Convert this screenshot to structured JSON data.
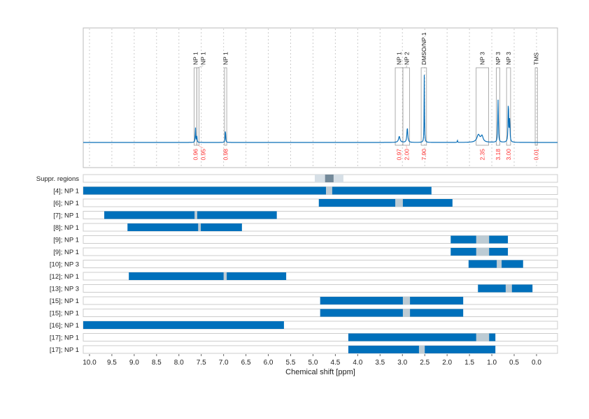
{
  "chart_data": {
    "type": "line",
    "xlabel": "Chemical shift [ppm]",
    "xlim": [
      10.14,
      -0.47
    ],
    "x_reversed": true,
    "x_ticks": [
      "10.0",
      "9.5",
      "9.0",
      "8.5",
      "8.0",
      "7.5",
      "7.0",
      "6.5",
      "6.0",
      "5.5",
      "5.0",
      "4.5",
      "4.0",
      "3.5",
      "3.0",
      "2.5",
      "2.0",
      "1.5",
      "1.0",
      "0.5",
      "0.0"
    ],
    "grid": "vertical dotted",
    "colors": {
      "spectrum": "#0a6fb8",
      "bar": "#0070bb",
      "gap": "#bccbd4",
      "integral": "#ff3030",
      "box": "#999999"
    },
    "spectrum_peaks": [
      {
        "ppm": 7.63,
        "height": 0.21,
        "width": 0.006
      },
      {
        "ppm": 7.6,
        "height": 0.1,
        "width": 0.006
      },
      {
        "ppm": 6.96,
        "height": 0.19,
        "width": 0.006
      },
      {
        "ppm": 3.07,
        "height": 0.08,
        "width": 0.02
      },
      {
        "ppm": 2.89,
        "height": 0.2,
        "width": 0.012
      },
      {
        "ppm": 2.51,
        "height": 0.95,
        "width": 0.005
      },
      {
        "ppm": 1.3,
        "height": 0.1,
        "width": 0.04
      },
      {
        "ppm": 1.22,
        "height": 0.08,
        "width": 0.03
      },
      {
        "ppm": 0.86,
        "height": 0.57,
        "width": 0.008
      },
      {
        "ppm": 0.63,
        "height": 0.55,
        "width": 0.008
      },
      {
        "ppm": 0.6,
        "height": 0.3,
        "width": 0.008
      },
      {
        "ppm": 1.77,
        "height": 0.03,
        "width": 0.005
      }
    ],
    "annotations": [
      {
        "label": "NP 1",
        "from": 7.66,
        "to": 7.6,
        "integral": "0.96"
      },
      {
        "label": "NP 1",
        "from": 7.6,
        "to": 7.55,
        "integral": "0.95"
      },
      {
        "label": "NP 1",
        "from": 6.98,
        "to": 6.93,
        "integral": "0.98"
      },
      {
        "label": "NP 1",
        "from": 3.16,
        "to": 2.99,
        "integral": "0.97"
      },
      {
        "label": "NP 2",
        "from": 2.99,
        "to": 2.84,
        "integral": "2.00"
      },
      {
        "label": "DMSO/NP 1",
        "from": 2.58,
        "to": 2.46,
        "integral": "7.90"
      },
      {
        "label": "NP 3",
        "from": 1.35,
        "to": 1.07,
        "integral": "2.35"
      },
      {
        "label": "NP 3",
        "from": 0.9,
        "to": 0.82,
        "integral": "3.18"
      },
      {
        "label": "NP 3",
        "from": 0.67,
        "to": 0.58,
        "integral": "3.00"
      },
      {
        "label": "TMS",
        "from": 0.03,
        "to": -0.02,
        "integral": "0.01"
      }
    ],
    "suppressed_regions": {
      "label": "Suppr. regions",
      "outer": [
        4.96,
        4.32
      ],
      "inner": [
        4.73,
        4.54
      ]
    },
    "rows": [
      {
        "label": "[4]; NP 1",
        "range": [
          10.14,
          2.35
        ],
        "gap": [
          4.71,
          4.57
        ]
      },
      {
        "label": "[6]; NP 1",
        "range": [
          4.87,
          1.88
        ],
        "gap": [
          3.16,
          2.99
        ]
      },
      {
        "label": "[7]; NP 1",
        "range": [
          9.67,
          5.81
        ],
        "gap": [
          7.65,
          7.59
        ]
      },
      {
        "label": "[8]; NP 1",
        "range": [
          9.15,
          6.59
        ],
        "gap": [
          7.57,
          7.51
        ]
      },
      {
        "label": "[9]; NP 1",
        "range": [
          1.92,
          0.64
        ],
        "gap": [
          1.35,
          1.06
        ]
      },
      {
        "label": "[9]; NP 1",
        "range": [
          1.92,
          0.64
        ],
        "gap": [
          1.35,
          1.06
        ]
      },
      {
        "label": "[10]; NP 3",
        "range": [
          1.52,
          0.3
        ],
        "gap": [
          0.89,
          0.78
        ]
      },
      {
        "label": "[12]; NP 1",
        "range": [
          9.12,
          5.6
        ],
        "gap": [
          7.0,
          6.93
        ]
      },
      {
        "label": "[13]; NP 3",
        "range": [
          1.31,
          0.09
        ],
        "gap": [
          0.69,
          0.55
        ]
      },
      {
        "label": "[15]; NP 1",
        "range": [
          4.84,
          1.64
        ],
        "gap": [
          2.99,
          2.83
        ]
      },
      {
        "label": "[15]; NP 1",
        "range": [
          4.84,
          1.64
        ],
        "gap": [
          2.99,
          2.83
        ]
      },
      {
        "label": "[16]; NP 1",
        "range": [
          10.14,
          5.65
        ],
        "gap": null
      },
      {
        "label": "[17]; NP 1",
        "range": [
          4.21,
          0.92
        ],
        "gap": [
          1.35,
          1.06
        ]
      },
      {
        "label": "[17]; NP 1",
        "range": [
          4.21,
          0.92
        ],
        "gap": [
          2.63,
          2.5
        ]
      }
    ]
  }
}
